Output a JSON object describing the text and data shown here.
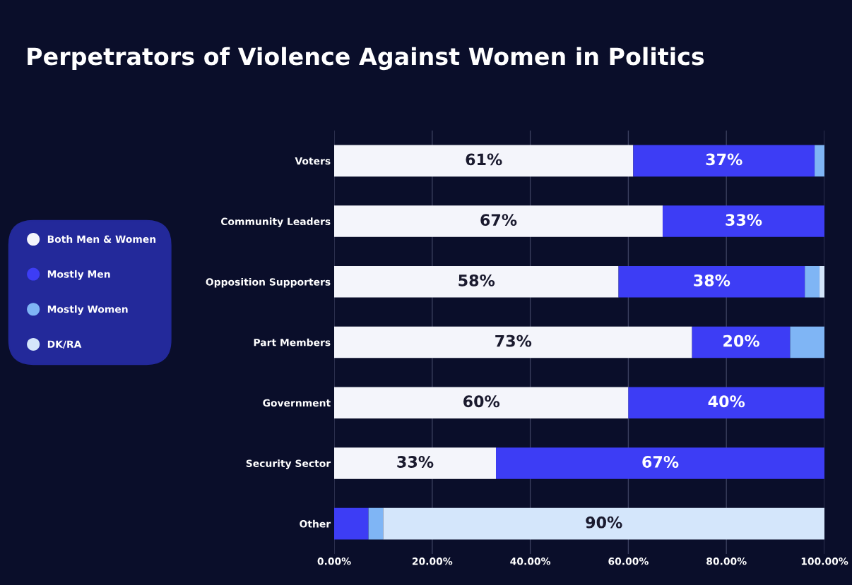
{
  "chart_data": {
    "type": "bar",
    "orientation": "horizontal",
    "stacked": true,
    "title": "Perpetrators of Violence Against Women in Politics",
    "categories": [
      "Voters",
      "Community Leaders",
      "Opposition Supporters",
      "Part Members",
      "Government",
      "Security Sector",
      "Other"
    ],
    "series": [
      {
        "name": "Both Men & Women",
        "color": "#f4f5fb",
        "values": [
          61,
          67,
          58,
          73,
          60,
          33,
          0
        ],
        "value_labels": [
          "61%",
          "67%",
          "58%",
          "73%",
          "60%",
          "33%",
          null
        ]
      },
      {
        "name": "Mostly Men",
        "color": "#3d3df5",
        "values": [
          37,
          33,
          38,
          20,
          40,
          67,
          7
        ],
        "value_labels": [
          "37%",
          "33%",
          "38%",
          "20%",
          "40%",
          "67%",
          null
        ]
      },
      {
        "name": "Mostly Women",
        "color": "#7fb5f5",
        "values": [
          2,
          0,
          3,
          7,
          0,
          0,
          3
        ],
        "value_labels": [
          null,
          null,
          null,
          null,
          null,
          null,
          null
        ]
      },
      {
        "name": "DK/RA",
        "color": "#d4e6fb",
        "values": [
          0,
          0,
          1,
          0,
          0,
          0,
          90
        ],
        "value_labels": [
          null,
          null,
          null,
          null,
          null,
          null,
          "90%"
        ]
      }
    ],
    "xlim": [
      0,
      100
    ],
    "xticks": [
      {
        "value": 0,
        "label": "0.00%"
      },
      {
        "value": 20,
        "label": "20.00%"
      },
      {
        "value": 40,
        "label": "40.00%"
      },
      {
        "value": 60,
        "label": "60.00%"
      },
      {
        "value": 80,
        "label": "80.00%"
      },
      {
        "value": 100,
        "label": "100.00%"
      }
    ],
    "grid": "x",
    "legend": "left"
  }
}
